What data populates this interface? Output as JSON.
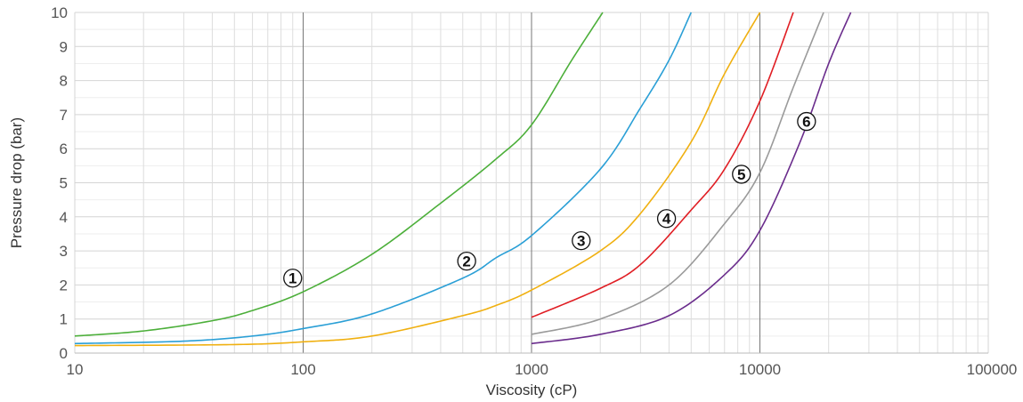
{
  "chart_data": {
    "type": "line",
    "title": "",
    "xlabel": "Viscosity (cP)",
    "ylabel": "Pressure drop (bar)",
    "xscale": "log",
    "xlim": [
      10,
      100000
    ],
    "ylim": [
      0,
      10
    ],
    "x_ticks": [
      10,
      100,
      1000,
      10000,
      100000
    ],
    "x_tick_labels": [
      "10",
      "100",
      "1000",
      "10000",
      "100000"
    ],
    "y_ticks": [
      0,
      1,
      2,
      3,
      4,
      5,
      6,
      7,
      8,
      9,
      10
    ],
    "y_tick_labels": [
      "0",
      "1",
      "2",
      "3",
      "4",
      "5",
      "6",
      "7",
      "8",
      "9",
      "10"
    ],
    "grid": true,
    "legend": "none",
    "series": [
      {
        "name": "1",
        "color": "#4caf3a",
        "points": [
          [
            10,
            0.5
          ],
          [
            20,
            0.65
          ],
          [
            40,
            0.95
          ],
          [
            60,
            1.25
          ],
          [
            100,
            1.8
          ],
          [
            200,
            2.9
          ],
          [
            400,
            4.4
          ],
          [
            700,
            5.7
          ],
          [
            1000,
            6.7
          ],
          [
            1500,
            8.6
          ],
          [
            2050,
            10
          ]
        ],
        "label_at": [
          90,
          2.2
        ]
      },
      {
        "name": "2",
        "color": "#2a9fd6",
        "points": [
          [
            10,
            0.28
          ],
          [
            30,
            0.35
          ],
          [
            60,
            0.5
          ],
          [
            100,
            0.72
          ],
          [
            200,
            1.15
          ],
          [
            500,
            2.2
          ],
          [
            700,
            2.8
          ],
          [
            1000,
            3.45
          ],
          [
            2000,
            5.4
          ],
          [
            3000,
            7.2
          ],
          [
            4000,
            8.6
          ],
          [
            5000,
            10
          ]
        ],
        "label_at": [
          520,
          2.7
        ]
      },
      {
        "name": "3",
        "color": "#f0b010",
        "points": [
          [
            10,
            0.22
          ],
          [
            50,
            0.25
          ],
          [
            100,
            0.33
          ],
          [
            200,
            0.5
          ],
          [
            500,
            1.1
          ],
          [
            700,
            1.4
          ],
          [
            1000,
            1.85
          ],
          [
            2000,
            3.0
          ],
          [
            3000,
            4.1
          ],
          [
            5000,
            6.2
          ],
          [
            7000,
            8.2
          ],
          [
            10000,
            10
          ]
        ],
        "label_at": [
          1650,
          3.3
        ]
      },
      {
        "name": "4",
        "color": "#e01e24",
        "points": [
          [
            1000,
            1.05
          ],
          [
            2000,
            1.9
          ],
          [
            3000,
            2.6
          ],
          [
            5000,
            4.2
          ],
          [
            7000,
            5.4
          ],
          [
            10000,
            7.4
          ],
          [
            14000,
            10
          ]
        ],
        "label_at": [
          3900,
          3.95
        ]
      },
      {
        "name": "5",
        "color": "#9a9a9a",
        "points": [
          [
            1000,
            0.55
          ],
          [
            2000,
            1.0
          ],
          [
            4000,
            2.0
          ],
          [
            7000,
            3.8
          ],
          [
            10000,
            5.3
          ],
          [
            14000,
            7.8
          ],
          [
            19000,
            10
          ]
        ],
        "label_at": [
          8300,
          5.25
        ]
      },
      {
        "name": "6",
        "color": "#6a2c8c",
        "points": [
          [
            1000,
            0.28
          ],
          [
            2000,
            0.55
          ],
          [
            4000,
            1.1
          ],
          [
            7000,
            2.3
          ],
          [
            10000,
            3.6
          ],
          [
            15000,
            6.2
          ],
          [
            20000,
            8.5
          ],
          [
            25000,
            10
          ]
        ],
        "label_at": [
          16000,
          6.8
        ]
      }
    ]
  }
}
